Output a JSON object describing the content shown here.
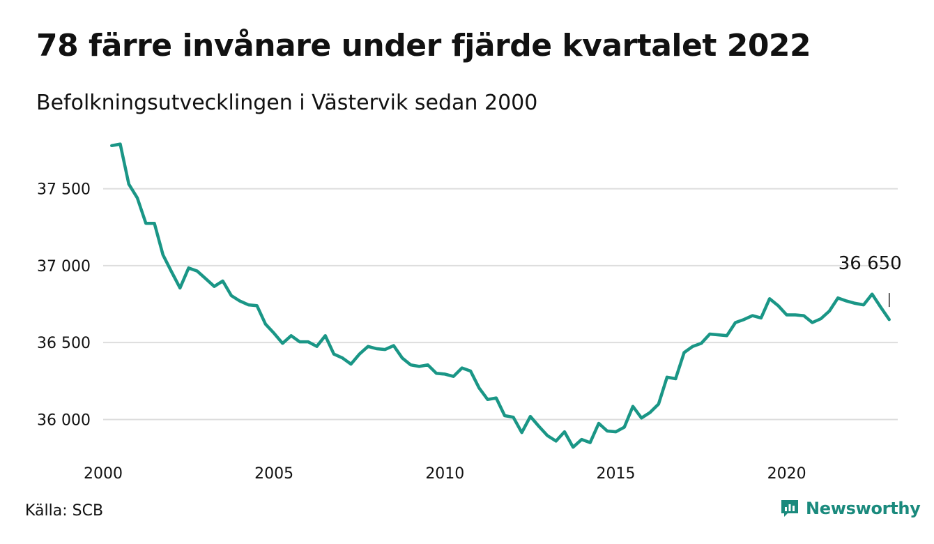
{
  "header": {
    "title": "78 färre invånare under fjärde kvartalet 2022",
    "subtitle": "Befolkningsutvecklingen i Västervik sedan 2000"
  },
  "footer": {
    "source": "Källa: SCB",
    "brand": "Newsworthy"
  },
  "colors": {
    "line": "#1a9686",
    "grid": "#dddddd",
    "brand": "#1a8a7d"
  },
  "chart_data": {
    "type": "line",
    "title": "78 färre invånare under fjärde kvartalet 2022",
    "subtitle": "Befolkningsutvecklingen i Västervik sedan 2000",
    "xlabel": "",
    "ylabel": "",
    "x_ticks": [
      2000,
      2005,
      2010,
      2015,
      2020
    ],
    "x_tick_labels": [
      "2000",
      "2005",
      "2010",
      "2015",
      "2020"
    ],
    "y_ticks": [
      36000,
      36500,
      37000,
      37500
    ],
    "y_tick_labels": [
      "36 000",
      "36 500",
      "37 000",
      "37 500"
    ],
    "xlim": [
      2000,
      2023.25
    ],
    "ylim": [
      35780,
      37820
    ],
    "grid": true,
    "legend": "none",
    "end_label": "36 650",
    "series": [
      {
        "x": [
          2000.25,
          2000.5,
          2000.75,
          2001,
          2001.25,
          2001.5,
          2001.75,
          2002,
          2002.25,
          2002.5,
          2002.75,
          2003,
          2003.25,
          2003.5,
          2003.75,
          2004,
          2004.25,
          2004.5,
          2004.75,
          2005,
          2005.25,
          2005.5,
          2005.75,
          2006,
          2006.25,
          2006.5,
          2006.75,
          2007,
          2007.25,
          2007.5,
          2007.75,
          2008,
          2008.25,
          2008.5,
          2008.75,
          2009,
          2009.25,
          2009.5,
          2009.75,
          2010,
          2010.25,
          2010.5,
          2010.75,
          2011,
          2011.25,
          2011.5,
          2011.75,
          2012,
          2012.25,
          2012.5,
          2012.75,
          2013,
          2013.25,
          2013.5,
          2013.75,
          2014,
          2014.25,
          2014.5,
          2014.75,
          2015,
          2015.25,
          2015.5,
          2015.75,
          2016,
          2016.25,
          2016.5,
          2016.75,
          2017,
          2017.25,
          2017.5,
          2017.75,
          2018,
          2018.25,
          2018.5,
          2018.75,
          2019,
          2019.25,
          2019.5,
          2019.75,
          2020,
          2020.25,
          2020.5,
          2020.75,
          2021,
          2021.25,
          2021.5,
          2021.75,
          2022,
          2022.25,
          2022.5,
          2022.75,
          2023
        ],
        "values": [
          37780,
          37790,
          37530,
          37440,
          37275,
          37275,
          37070,
          36960,
          36855,
          36985,
          36965,
          36915,
          36865,
          36900,
          36805,
          36770,
          36745,
          36740,
          36620,
          36560,
          36495,
          36545,
          36505,
          36505,
          36475,
          36545,
          36425,
          36400,
          36360,
          36425,
          36475,
          36460,
          36455,
          36480,
          36400,
          36355,
          36345,
          36355,
          36300,
          36295,
          36280,
          36335,
          36315,
          36205,
          36130,
          36140,
          36025,
          36015,
          35915,
          36020,
          35955,
          35895,
          35860,
          35920,
          35820,
          35870,
          35850,
          35975,
          35925,
          35920,
          35950,
          36085,
          36010,
          36045,
          36100,
          36275,
          36265,
          36435,
          36475,
          36495,
          36555,
          36550,
          36545,
          36630,
          36650,
          36675,
          36660,
          36785,
          36740,
          36680,
          36680,
          36675,
          36630,
          36655,
          36705,
          36790,
          36770,
          36755,
          36745,
          36815,
          36730,
          36650
        ]
      }
    ]
  }
}
